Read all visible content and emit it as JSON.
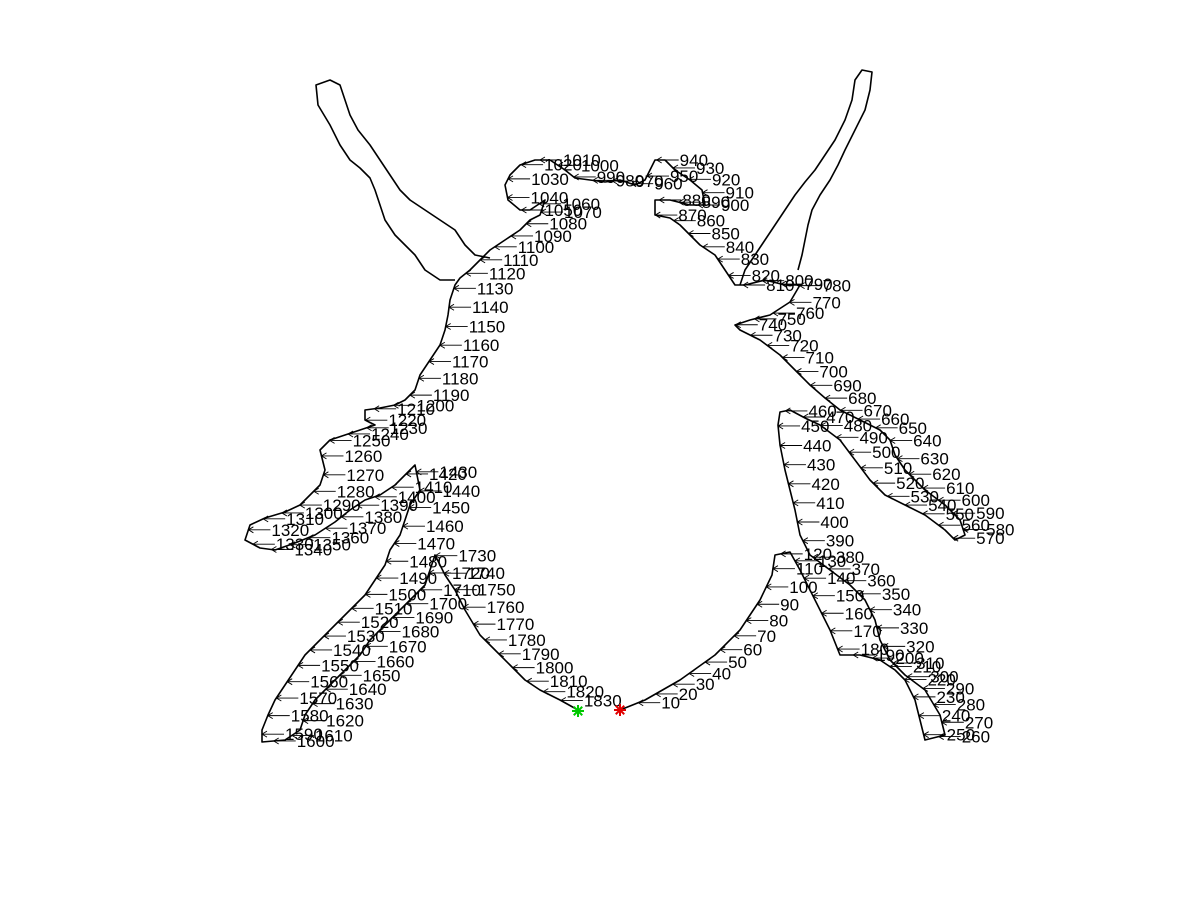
{
  "figure": {
    "outline_color": "#000000",
    "start_marker": {
      "color": "#00c800",
      "symbol": "asterisk"
    },
    "end_marker": {
      "color": "#e00000",
      "symbol": "asterisk"
    },
    "contour_labels": [
      "10",
      "20",
      "30",
      "40",
      "50",
      "60",
      "70",
      "80",
      "90",
      "100",
      "110",
      "120",
      "130",
      "140",
      "150",
      "160",
      "170",
      "180",
      "190",
      "200",
      "210",
      "220",
      "230",
      "240",
      "250",
      "260",
      "270",
      "280",
      "290",
      "300",
      "310",
      "320",
      "330",
      "340",
      "350",
      "360",
      "370",
      "380",
      "390",
      "400",
      "410",
      "420",
      "430",
      "440",
      "450",
      "460",
      "470",
      "480",
      "490",
      "500",
      "510",
      "520",
      "530",
      "540",
      "550",
      "560",
      "570",
      "580",
      "590",
      "600",
      "610",
      "620",
      "630",
      "640",
      "650",
      "660",
      "670",
      "680",
      "690",
      "700",
      "710",
      "720",
      "730",
      "740",
      "750",
      "760",
      "770",
      "780",
      "790",
      "800",
      "810",
      "820",
      "830",
      "840",
      "850",
      "860",
      "870",
      "880",
      "890",
      "900",
      "910",
      "920",
      "930",
      "940",
      "950",
      "960",
      "970",
      "980",
      "990",
      "1000",
      "1010",
      "1020",
      "1030",
      "1040",
      "1050",
      "1060",
      "1070",
      "1080",
      "1090",
      "1100",
      "1110",
      "1120",
      "1130",
      "1140",
      "1150",
      "1160",
      "1170",
      "1180",
      "1190",
      "1200",
      "1210",
      "1220",
      "1230",
      "1240",
      "1250",
      "1260",
      "1270",
      "1280",
      "1290",
      "1300",
      "1310",
      "1320",
      "1330",
      "1340",
      "1350",
      "1360",
      "1370",
      "1380",
      "1390",
      "1400",
      "1410",
      "1420",
      "1430",
      "1440",
      "1450",
      "1460",
      "1470",
      "1480",
      "1490",
      "1500",
      "1510",
      "1520",
      "1530",
      "1540",
      "1550",
      "1560",
      "1570",
      "1580",
      "1590",
      "1600",
      "1610",
      "1620",
      "1630",
      "1640",
      "1650",
      "1660",
      "1670",
      "1680",
      "1690",
      "1700",
      "1710",
      "1720",
      "1730",
      "1740",
      "1750",
      "1760",
      "1770",
      "1780",
      "1790",
      "1800",
      "1810",
      "1820",
      "1830"
    ]
  }
}
